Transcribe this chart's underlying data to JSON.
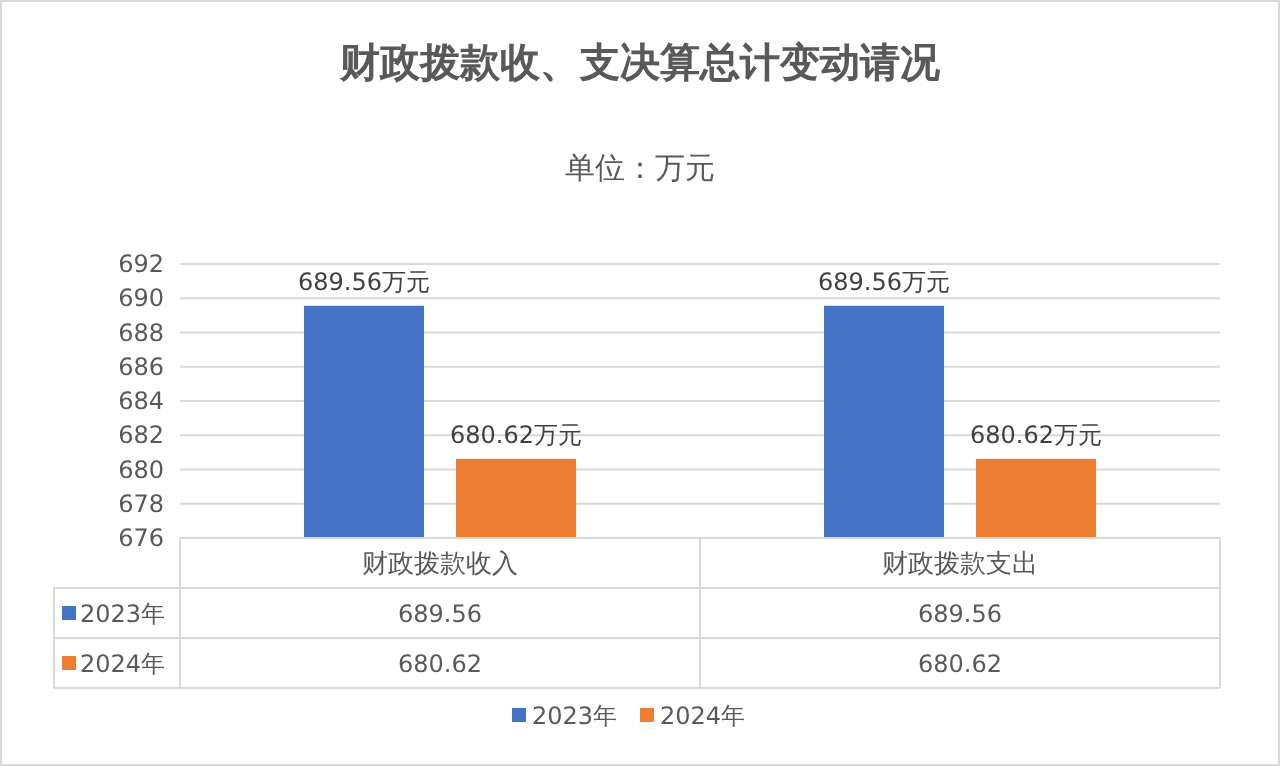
{
  "chart_data": {
    "type": "bar",
    "title": "财政拨款收、支决算总计变动请况",
    "subtitle": "单位：万元",
    "categories": [
      "财政拨款收入",
      "财政拨款支出"
    ],
    "series": [
      {
        "name": "2023年",
        "color": "#4472c4",
        "values": [
          689.56,
          689.56
        ],
        "value_labels": [
          "689.56",
          "689.56"
        ]
      },
      {
        "name": "2024年",
        "color": "#ed7d31",
        "values": [
          680.62,
          680.62
        ],
        "value_labels": [
          "680.62",
          "680.62"
        ]
      }
    ],
    "annotations": [
      "689.56万元",
      "680.62万元",
      "689.56万元",
      "680.62万元"
    ],
    "ylim": [
      676,
      692
    ],
    "yticks": [
      676,
      678,
      680,
      682,
      684,
      686,
      688,
      690,
      692
    ],
    "grid": "y",
    "legend": "bottom",
    "data_labels": true
  }
}
